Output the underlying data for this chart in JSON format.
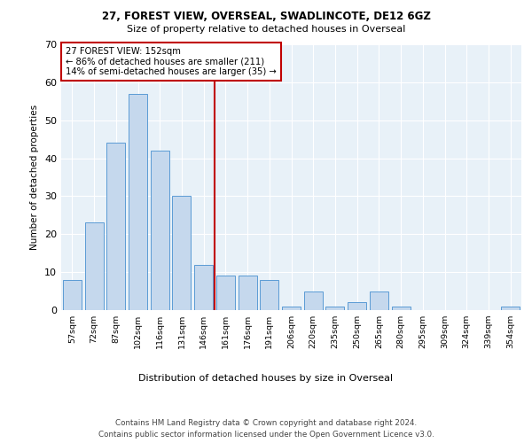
{
  "title1": "27, FOREST VIEW, OVERSEAL, SWADLINCOTE, DE12 6GZ",
  "title2": "Size of property relative to detached houses in Overseal",
  "xlabel": "Distribution of detached houses by size in Overseal",
  "ylabel": "Number of detached properties",
  "bar_labels": [
    "57sqm",
    "72sqm",
    "87sqm",
    "102sqm",
    "116sqm",
    "131sqm",
    "146sqm",
    "161sqm",
    "176sqm",
    "191sqm",
    "206sqm",
    "220sqm",
    "235sqm",
    "250sqm",
    "265sqm",
    "280sqm",
    "295sqm",
    "309sqm",
    "324sqm",
    "339sqm",
    "354sqm"
  ],
  "bar_values": [
    8,
    23,
    44,
    57,
    42,
    30,
    12,
    9,
    9,
    8,
    1,
    5,
    1,
    2,
    5,
    1,
    0,
    0,
    0,
    0,
    1
  ],
  "bar_color": "#c5d8ed",
  "bar_edge_color": "#5b9bd5",
  "vline_color": "#c00000",
  "annotation_title": "27 FOREST VIEW: 152sqm",
  "annotation_line1": "← 86% of detached houses are smaller (211)",
  "annotation_line2": "14% of semi-detached houses are larger (35) →",
  "annotation_box_color": "#c00000",
  "ylim": [
    0,
    70
  ],
  "yticks": [
    0,
    10,
    20,
    30,
    40,
    50,
    60,
    70
  ],
  "footer1": "Contains HM Land Registry data © Crown copyright and database right 2024.",
  "footer2": "Contains public sector information licensed under the Open Government Licence v3.0.",
  "bg_color": "#e8f1f8",
  "fig_bg_color": "#ffffff",
  "vline_bar_index": 7
}
